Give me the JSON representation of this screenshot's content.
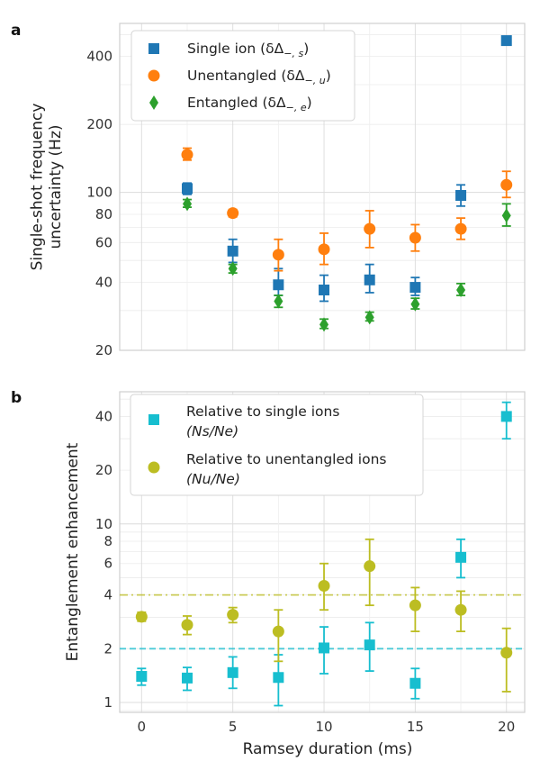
{
  "chart_data": [
    {
      "panel": "a",
      "type": "scatter",
      "yscale": "log",
      "ylabel": "Single-shot frequency uncertainty (Hz)",
      "ylabel_lines": [
        "Single-shot frequency",
        "uncertainty (Hz)"
      ],
      "xlabel": "",
      "xlim": [
        -1.2,
        21
      ],
      "ylim": [
        20,
        560
      ],
      "yticks": [
        20,
        40,
        60,
        80,
        100,
        200,
        400
      ],
      "grid": true,
      "legend_position": "top-left",
      "series": [
        {
          "name": "Single ion (δΔ−,s)",
          "legend_main": "Single ion (δΔ",
          "legend_sub": "−, s",
          "legend_close": ")",
          "marker": "square",
          "color": "#1f77b4",
          "points": [
            {
              "x": 2.5,
              "y": 104,
              "lo": 98,
              "hi": 110
            },
            {
              "x": 5,
              "y": 55,
              "lo": 49,
              "hi": 62
            },
            {
              "x": 7.5,
              "y": 39,
              "lo": 35,
              "hi": 46
            },
            {
              "x": 10,
              "y": 37,
              "lo": 33,
              "hi": 43
            },
            {
              "x": 12.5,
              "y": 41,
              "lo": 36,
              "hi": 48
            },
            {
              "x": 15,
              "y": 38,
              "lo": 35,
              "hi": 42
            },
            {
              "x": 17.5,
              "y": 97,
              "lo": 87,
              "hi": 108
            },
            {
              "x": 20,
              "y": 470
            }
          ]
        },
        {
          "name": "Unentangled (δΔ−,u)",
          "legend_main": "Unentangled (δΔ",
          "legend_sub": "−, u",
          "legend_close": ")",
          "marker": "circle",
          "color": "#ff7f0e",
          "points": [
            {
              "x": 2.5,
              "y": 147,
              "lo": 139,
              "hi": 157
            },
            {
              "x": 5,
              "y": 81,
              "lo": 78,
              "hi": 84
            },
            {
              "x": 7.5,
              "y": 53,
              "lo": 45,
              "hi": 62
            },
            {
              "x": 10,
              "y": 56,
              "lo": 48,
              "hi": 66
            },
            {
              "x": 12.5,
              "y": 69,
              "lo": 57,
              "hi": 83
            },
            {
              "x": 15,
              "y": 63,
              "lo": 55,
              "hi": 72
            },
            {
              "x": 17.5,
              "y": 69,
              "lo": 62,
              "hi": 77
            },
            {
              "x": 20,
              "y": 108,
              "lo": 95,
              "hi": 124
            }
          ]
        },
        {
          "name": "Entangled (δΔ−,e)",
          "legend_main": "Entangled (δΔ",
          "legend_sub": "−, e",
          "legend_close": ")",
          "marker": "diamond",
          "color": "#2ca02c",
          "points": [
            {
              "x": 2.5,
              "y": 89,
              "lo": 86,
              "hi": 93
            },
            {
              "x": 5,
              "y": 46,
              "lo": 44,
              "hi": 48
            },
            {
              "x": 7.5,
              "y": 33,
              "lo": 31,
              "hi": 35
            },
            {
              "x": 10,
              "y": 26,
              "lo": 25,
              "hi": 27.5
            },
            {
              "x": 12.5,
              "y": 28,
              "lo": 27,
              "hi": 29.5
            },
            {
              "x": 15,
              "y": 32,
              "lo": 30.5,
              "hi": 34
            },
            {
              "x": 17.5,
              "y": 37,
              "lo": 35,
              "hi": 39.5
            },
            {
              "x": 20,
              "y": 79,
              "lo": 71,
              "hi": 89
            }
          ]
        }
      ]
    },
    {
      "panel": "b",
      "type": "scatter",
      "yscale": "log",
      "ylabel": "Entanglement enhancement",
      "xlabel": "Ramsey duration (ms)",
      "xlim": [
        -1.2,
        21
      ],
      "ylim": [
        0.88,
        55
      ],
      "xticks": [
        0,
        5,
        10,
        15,
        20
      ],
      "yticks": [
        1,
        2,
        4,
        6,
        8,
        10,
        20,
        40
      ],
      "grid": true,
      "legend_position": "top-left",
      "hlines": [
        {
          "y": 2,
          "style": "dashed",
          "color": "#17becf"
        },
        {
          "y": 4,
          "style": "dashdot",
          "color": "#bcbd22"
        }
      ],
      "series": [
        {
          "name": "Relative to single ions (Ns/Ne)",
          "legend_line1": "Relative to single ions",
          "legend_line2": "(Ns/Ne)",
          "marker": "square",
          "color": "#17becf",
          "points": [
            {
              "x": 0,
              "y": 1.4,
              "lo": 1.25,
              "hi": 1.55
            },
            {
              "x": 2.5,
              "y": 1.37,
              "lo": 1.17,
              "hi": 1.57
            },
            {
              "x": 5,
              "y": 1.47,
              "lo": 1.2,
              "hi": 1.8
            },
            {
              "x": 7.5,
              "y": 1.38,
              "lo": 0.96,
              "hi": 1.85
            },
            {
              "x": 10,
              "y": 2.02,
              "lo": 1.45,
              "hi": 2.65
            },
            {
              "x": 12.5,
              "y": 2.1,
              "lo": 1.5,
              "hi": 2.8
            },
            {
              "x": 15,
              "y": 1.28,
              "lo": 1.05,
              "hi": 1.55
            },
            {
              "x": 17.5,
              "y": 6.5,
              "lo": 5.0,
              "hi": 8.2
            },
            {
              "x": 20,
              "y": 40,
              "lo": 30,
              "hi": 48
            }
          ]
        },
        {
          "name": "Relative to unentangled ions (Nu/Ne)",
          "legend_line1": "Relative to unentangled ions",
          "legend_line2": "(Nu/Ne)",
          "marker": "circle",
          "color": "#bcbd22",
          "points": [
            {
              "x": 0,
              "y": 3.02,
              "lo": 2.85,
              "hi": 3.2
            },
            {
              "x": 2.5,
              "y": 2.72,
              "lo": 2.4,
              "hi": 3.05
            },
            {
              "x": 5,
              "y": 3.1,
              "lo": 2.8,
              "hi": 3.4
            },
            {
              "x": 7.5,
              "y": 2.5,
              "lo": 1.7,
              "hi": 3.3
            },
            {
              "x": 10,
              "y": 4.5,
              "lo": 3.3,
              "hi": 6.0
            },
            {
              "x": 12.5,
              "y": 5.8,
              "lo": 3.5,
              "hi": 8.2
            },
            {
              "x": 15,
              "y": 3.5,
              "lo": 2.5,
              "hi": 4.4
            },
            {
              "x": 17.5,
              "y": 3.3,
              "lo": 2.5,
              "hi": 4.2
            },
            {
              "x": 20,
              "y": 1.9,
              "lo": 1.15,
              "hi": 2.6
            }
          ]
        }
      ]
    }
  ]
}
